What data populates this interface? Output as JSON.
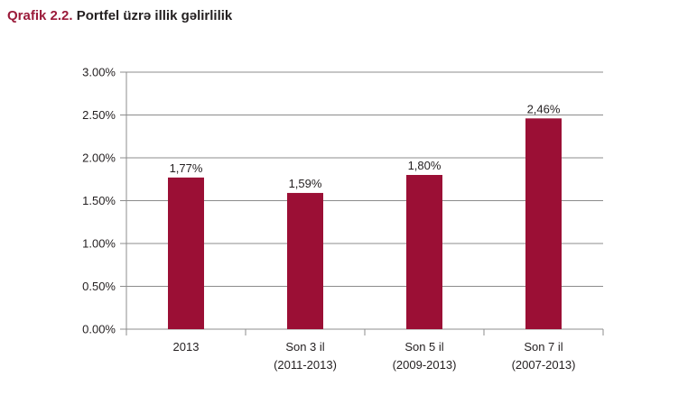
{
  "title_prefix": "Qrafik 2.2.",
  "title_text": "Portfel üzrə illik gəlirlilik",
  "colors": {
    "bar": "#9b0f35",
    "title_accent": "#9b1b3a",
    "grid": "#8c8c8c"
  },
  "chart_data": {
    "type": "bar",
    "title": "Portfel üzrə illik gəlirlilik",
    "categories": [
      [
        "2013"
      ],
      [
        "Son 3 il",
        "(2011-2013)"
      ],
      [
        "Son 5 il",
        "(2009-2013)"
      ],
      [
        "Son 7 il",
        "(2007-2013)"
      ]
    ],
    "values": [
      1.77,
      1.59,
      1.8,
      2.46
    ],
    "data_labels": [
      "1,77%",
      "1,59%",
      "1,80%",
      "2,46%"
    ],
    "yticks": [
      "0.00%",
      "0.50%",
      "1.00%",
      "1.50%",
      "2.00%",
      "2.50%",
      "3.00%"
    ],
    "ylim": [
      0,
      3
    ],
    "grid": true,
    "legend": "none"
  }
}
